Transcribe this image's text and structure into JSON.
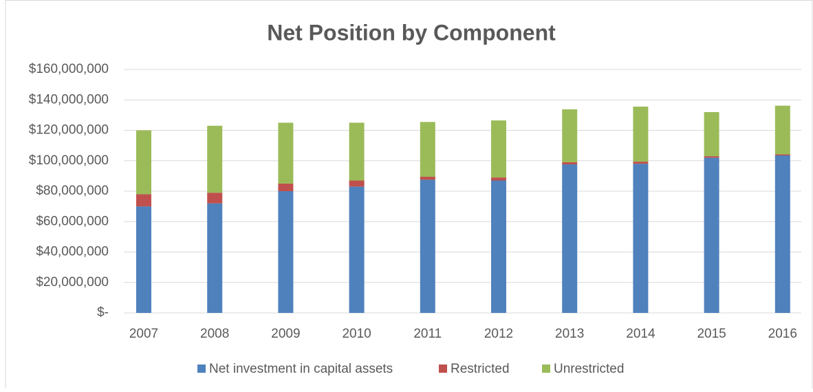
{
  "chart_data": {
    "type": "stacked_bar",
    "title": "Net Position by Component",
    "categories": [
      "2007",
      "2008",
      "2009",
      "2010",
      "2011",
      "2012",
      "2013",
      "2014",
      "2015",
      "2016"
    ],
    "series": [
      {
        "name": "Net investment in capital assets",
        "color": "#4f81bd",
        "values": [
          70000000,
          72000000,
          80000000,
          83000000,
          87500000,
          87000000,
          97600000,
          98000000,
          102000000,
          103500000
        ]
      },
      {
        "name": "Restricted",
        "color": "#c0504d",
        "values": [
          8000000,
          7000000,
          5000000,
          4000000,
          2000000,
          2000000,
          1400000,
          1400000,
          1000000,
          700000
        ]
      },
      {
        "name": "Unrestricted",
        "color": "#9bbb59",
        "values": [
          42000000,
          44000000,
          40000000,
          38000000,
          36000000,
          37500000,
          34800000,
          36200000,
          29000000,
          32000000
        ]
      }
    ],
    "ylim": [
      0,
      160000000
    ],
    "yticks": [
      {
        "value": 0,
        "label": "$-"
      },
      {
        "value": 20000000,
        "label": "$20,000,000"
      },
      {
        "value": 40000000,
        "label": "$40,000,000"
      },
      {
        "value": 60000000,
        "label": "$60,000,000"
      },
      {
        "value": 80000000,
        "label": "$80,000,000"
      },
      {
        "value": 100000000,
        "label": "$100,000,000"
      },
      {
        "value": 120000000,
        "label": "$120,000,000"
      },
      {
        "value": 140000000,
        "label": "$140,000,000"
      },
      {
        "value": 160000000,
        "label": "$160,000,000"
      }
    ],
    "grid": true,
    "legend": "bottom"
  }
}
